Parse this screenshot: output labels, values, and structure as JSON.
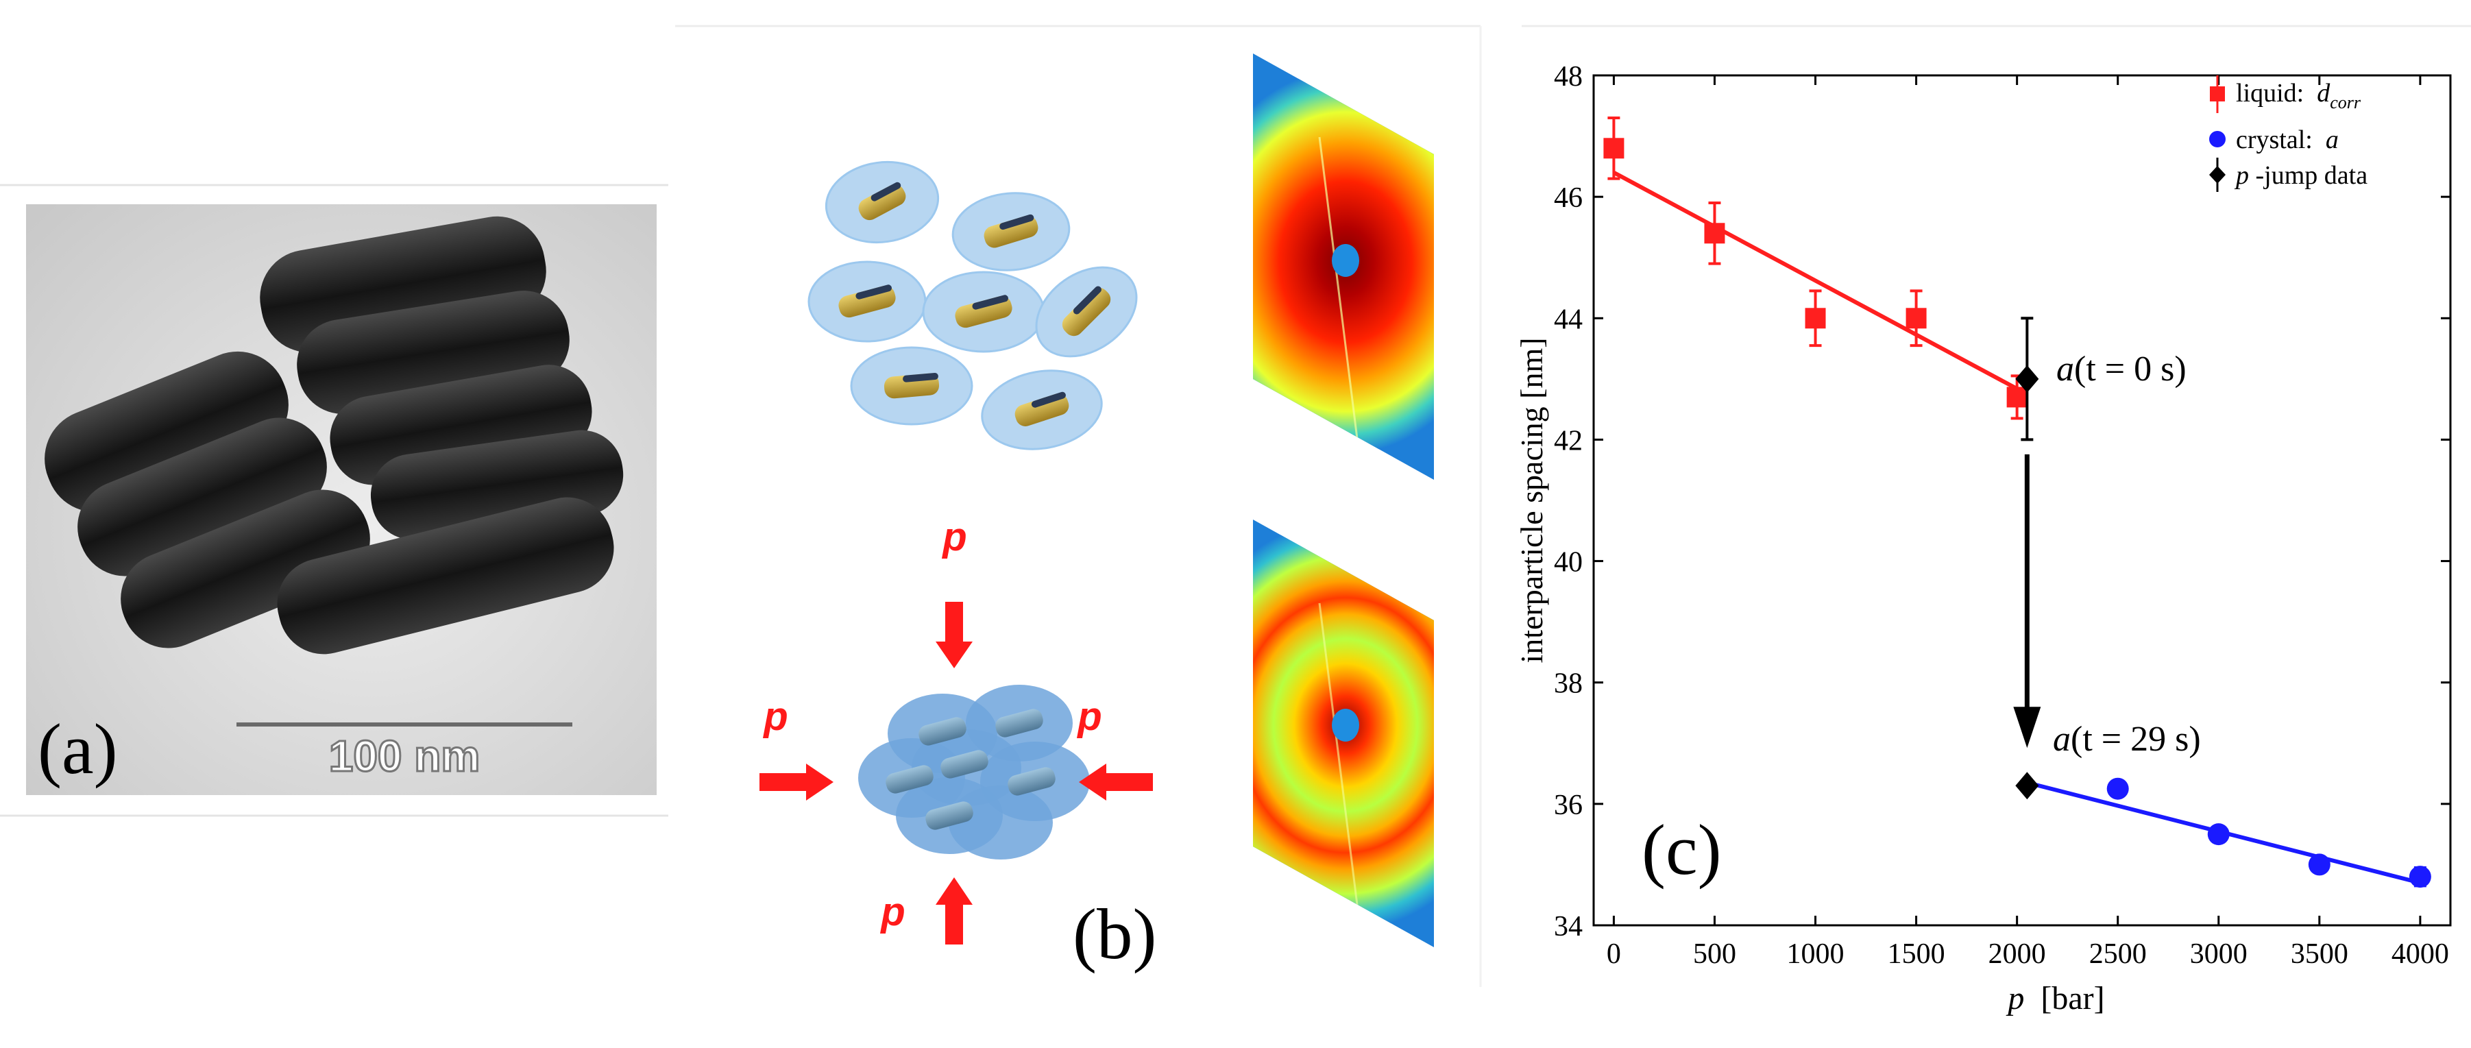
{
  "colors": {
    "liquid": "#ff1f1f",
    "crystal": "#1a1aff",
    "jump": "#000000",
    "pressure_arrow": "#ff1a1a",
    "halo": "#9cc8ee",
    "rod": "#c8a83a"
  },
  "panel_a": {
    "label": "(a)",
    "scale_bar_text": "100 nm"
  },
  "panel_b": {
    "label": "(b)",
    "pressure_symbol": "p"
  },
  "panel_c": {
    "label": "(c)",
    "annotations": {
      "t0_a": "a",
      "t0_rest": "(t = 0 s)",
      "t29_a": "a",
      "t29_rest": "(t = 29 s)"
    }
  },
  "chart_data": {
    "type": "scatter",
    "title": "",
    "xlabel": "p  [bar]",
    "ylabel": "interparticle spacing [nm]",
    "xlim": [
      -100,
      4150
    ],
    "ylim": [
      34,
      48
    ],
    "xticks": [
      0,
      500,
      1000,
      1500,
      2000,
      2500,
      3000,
      3500,
      4000
    ],
    "yticks": [
      34,
      36,
      38,
      40,
      42,
      44,
      46,
      48
    ],
    "legend_position": "top-right",
    "series": [
      {
        "name": "liquid",
        "legend_prefix": "liquid:  ",
        "legend_var": "d",
        "legend_sub": "corr",
        "marker": "square",
        "x": [
          0,
          500,
          1000,
          1500,
          2000
        ],
        "y": [
          46.8,
          45.4,
          44.0,
          44.0,
          42.7
        ],
        "err": [
          0.5,
          0.5,
          0.45,
          0.45,
          0.35
        ],
        "fit": [
          [
            0,
            46.4
          ],
          [
            2050,
            42.75
          ]
        ]
      },
      {
        "name": "crystal",
        "legend_prefix": "crystal:  ",
        "legend_var": "a",
        "legend_sub": "",
        "marker": "circle",
        "x": [
          2500,
          3000,
          3500,
          4000
        ],
        "y": [
          36.25,
          35.5,
          35.0,
          34.8
        ],
        "err": [
          0,
          0,
          0,
          0.15
        ],
        "fit": [
          [
            2050,
            36.35
          ],
          [
            4000,
            34.7
          ]
        ]
      },
      {
        "name": "p-jump",
        "legend_prefix": "",
        "legend_var": "p",
        "legend_sub": "",
        "legend_suffix": " -jump data",
        "marker": "diamond",
        "x": [
          2050,
          2050
        ],
        "y": [
          43.0,
          36.3
        ],
        "err": [
          1.0,
          0
        ]
      }
    ]
  }
}
